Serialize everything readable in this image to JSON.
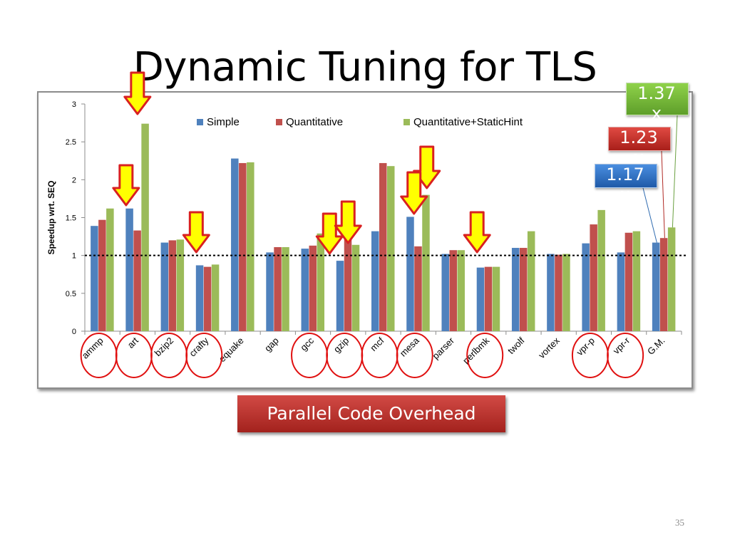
{
  "slide": {
    "title": "Dynamic Tuning for TLS",
    "page_number": "35",
    "overhead_label": "Parallel Code Overhead"
  },
  "callouts": {
    "green": "1.37x",
    "red": "1.23x",
    "blue": "1.17x"
  },
  "colors": {
    "simple": "#4f81bd",
    "quantitative": "#c0504d",
    "static_hint": "#9bbb59",
    "arrow_fill": "#ffff00",
    "arrow_stroke": "#d92020",
    "circle_stroke": "#e01010"
  },
  "chart_data": {
    "type": "bar",
    "ylabel": "Speedup wrt. SEQ",
    "ylim": [
      0,
      3
    ],
    "yticks": [
      "0",
      "0.5",
      "1",
      "1.5",
      "2",
      "2.5",
      "3"
    ],
    "reference_line": 1,
    "legend_position": "top",
    "categories": [
      "ammp",
      "art",
      "bzip2",
      "crafty",
      "equake",
      "gap",
      "gcc",
      "gzip",
      "mcf",
      "mesa",
      "parser",
      "perlbmk",
      "twolf",
      "vortex",
      "vpr-p",
      "vpr-r",
      "G.M."
    ],
    "series": [
      {
        "name": "Simple",
        "values": [
          1.39,
          1.62,
          1.17,
          0.87,
          2.28,
          1.04,
          1.09,
          0.93,
          1.32,
          1.51,
          1.02,
          0.84,
          1.1,
          1.02,
          1.16,
          1.04,
          1.17
        ]
      },
      {
        "name": "Quantitative",
        "values": [
          1.47,
          1.33,
          1.2,
          0.85,
          2.22,
          1.11,
          1.13,
          1.25,
          2.22,
          1.12,
          1.07,
          0.85,
          1.1,
          1.01,
          1.41,
          1.3,
          1.23
        ]
      },
      {
        "name": "Quantitative+StaticHint",
        "values": [
          1.62,
          2.74,
          1.21,
          0.88,
          2.23,
          1.11,
          1.29,
          1.14,
          2.18,
          1.8,
          1.07,
          0.85,
          1.32,
          1.02,
          1.6,
          1.32,
          1.37
        ]
      }
    ],
    "highlighted_categories": [
      "ammp",
      "art",
      "bzip2",
      "crafty",
      "gcc",
      "gzip",
      "mcf",
      "mesa",
      "perlbmk",
      "vpr-p",
      "vpr-r"
    ],
    "arrow_categories": [
      "art",
      "art",
      "crafty",
      "gzip",
      "gzip",
      "mesa",
      "mesa",
      "perlbmk"
    ]
  }
}
